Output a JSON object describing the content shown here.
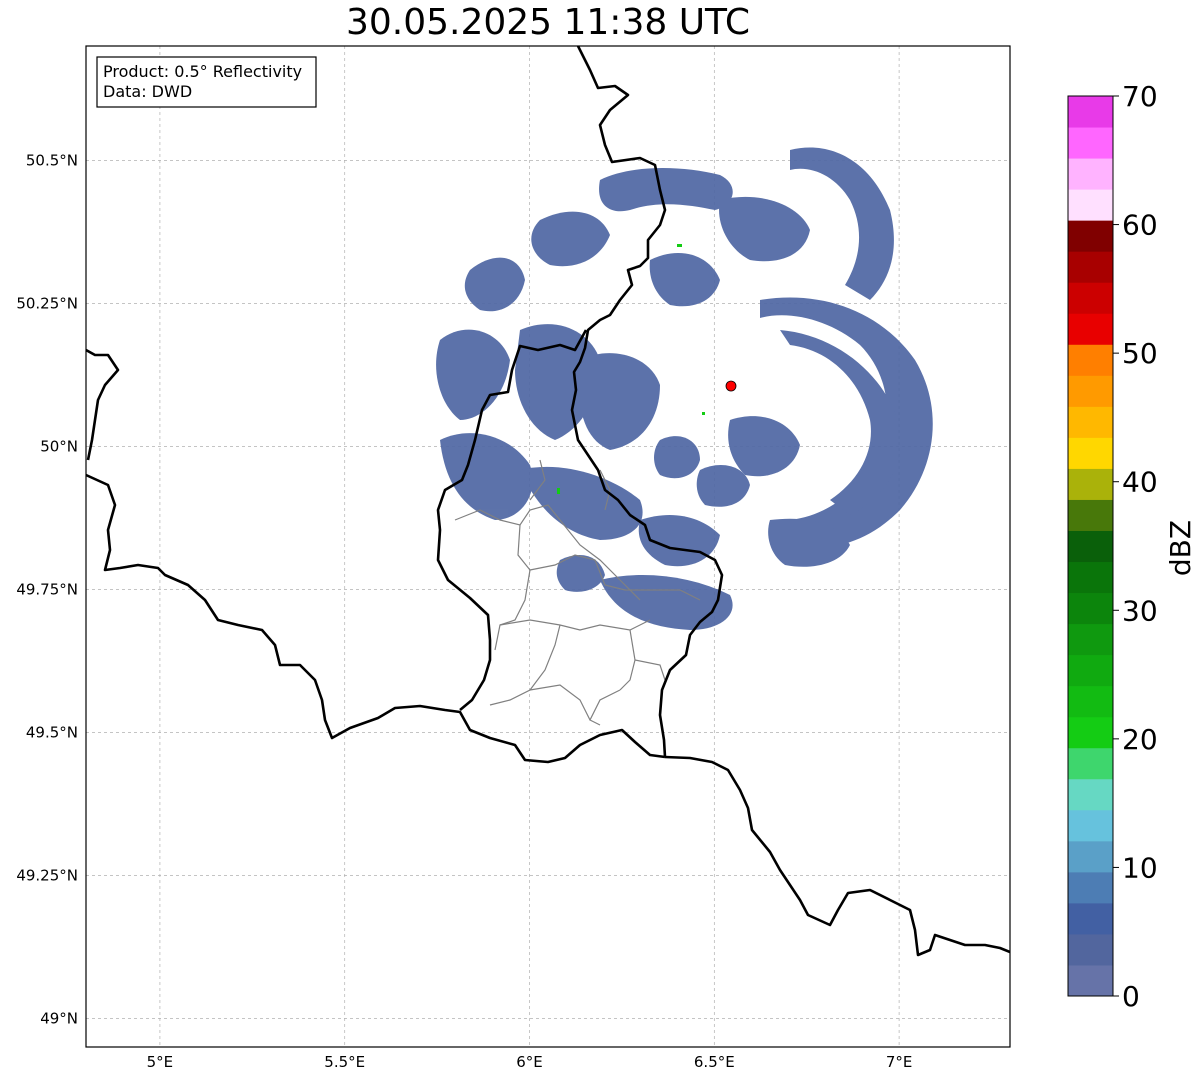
{
  "title": "30.05.2025 11:38 UTC",
  "info_box": {
    "line1": "Product: 0.5° Reflectivity",
    "line2": "Data: DWD"
  },
  "map": {
    "lon_range": [
      4.8,
      7.3
    ],
    "lat_range": [
      48.95,
      50.7
    ],
    "lon_ticks": [
      {
        "value": 5.0,
        "label": "5°E"
      },
      {
        "value": 5.5,
        "label": "5.5°E"
      },
      {
        "value": 6.0,
        "label": "6°E"
      },
      {
        "value": 6.5,
        "label": "6.5°E"
      },
      {
        "value": 7.0,
        "label": "7°E"
      }
    ],
    "lat_ticks": [
      {
        "value": 49.0,
        "label": "49°N"
      },
      {
        "value": 49.25,
        "label": "49.25°N"
      },
      {
        "value": 49.5,
        "label": "49.5°N"
      },
      {
        "value": 49.75,
        "label": "49.75°N"
      },
      {
        "value": 50.0,
        "label": "50°N"
      },
      {
        "value": 50.25,
        "label": "50.25°N"
      },
      {
        "value": 50.5,
        "label": "50.5°N"
      }
    ],
    "gridlines": true,
    "radar_site": {
      "lon": 6.55,
      "lat": 50.11,
      "color": "#ff0000"
    },
    "echo_color": "#4f67a3"
  },
  "colorbar": {
    "label": "dBZ",
    "min": 0,
    "max": 70,
    "ticks": [
      "0",
      "10",
      "20",
      "30",
      "40",
      "50",
      "60",
      "70"
    ],
    "colors": [
      "#6673a8",
      "#52669e",
      "#4260a3",
      "#4d7db4",
      "#5aa0c8",
      "#66c2dd",
      "#66d8c3",
      "#3ed66d",
      "#14cc14",
      "#12bb12",
      "#10aa10",
      "#0f990f",
      "#0c850c",
      "#0a750a",
      "#0a600a",
      "#48780a",
      "#aab20a",
      "#ffd700",
      "#ffb800",
      "#ff9a00",
      "#ff7f00",
      "#e80000",
      "#cc0000",
      "#a80000",
      "#800000",
      "#ffe0ff",
      "#ffb3ff",
      "#ff66ff",
      "#e83ae8"
    ]
  }
}
